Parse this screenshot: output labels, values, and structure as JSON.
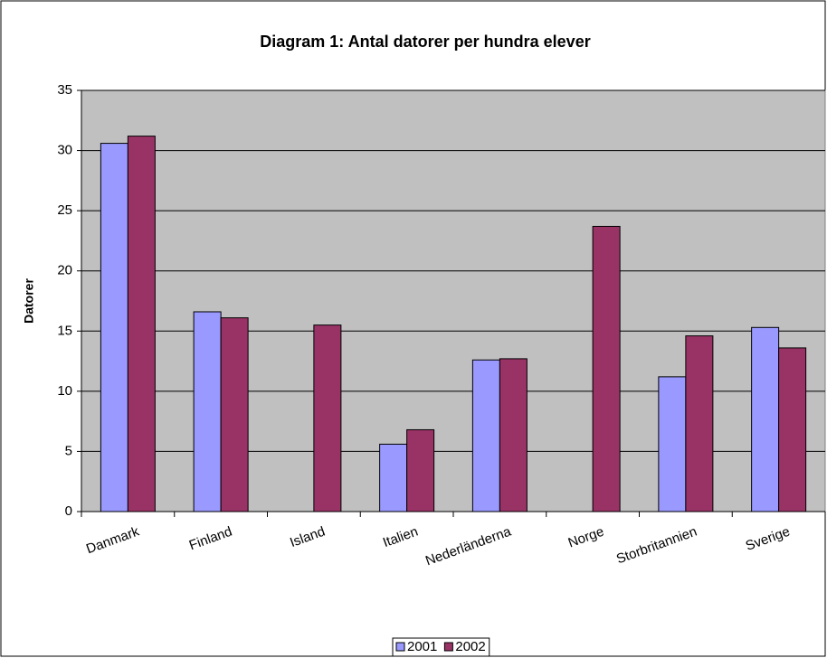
{
  "chart_data": {
    "type": "bar",
    "title": "Diagram 1: Antal datorer per hundra elever",
    "y_label": "Datorer",
    "categories": [
      "Danmark",
      "Finland",
      "Island",
      "Italien",
      "Nederländerna",
      "Norge",
      "Storbritannien",
      "Sverige"
    ],
    "series": [
      {
        "name": "2001",
        "color": "#9999ff",
        "values": [
          30.6,
          16.6,
          null,
          5.6,
          12.6,
          null,
          11.2,
          15.3
        ]
      },
      {
        "name": "2002",
        "color": "#993366",
        "values": [
          31.2,
          16.1,
          15.5,
          6.8,
          12.7,
          23.7,
          14.6,
          13.6
        ]
      }
    ],
    "ylim": [
      0,
      35
    ],
    "yticks": [
      0,
      5,
      10,
      15,
      20,
      25,
      30,
      35
    ],
    "grid": true,
    "legend": "bottom"
  }
}
